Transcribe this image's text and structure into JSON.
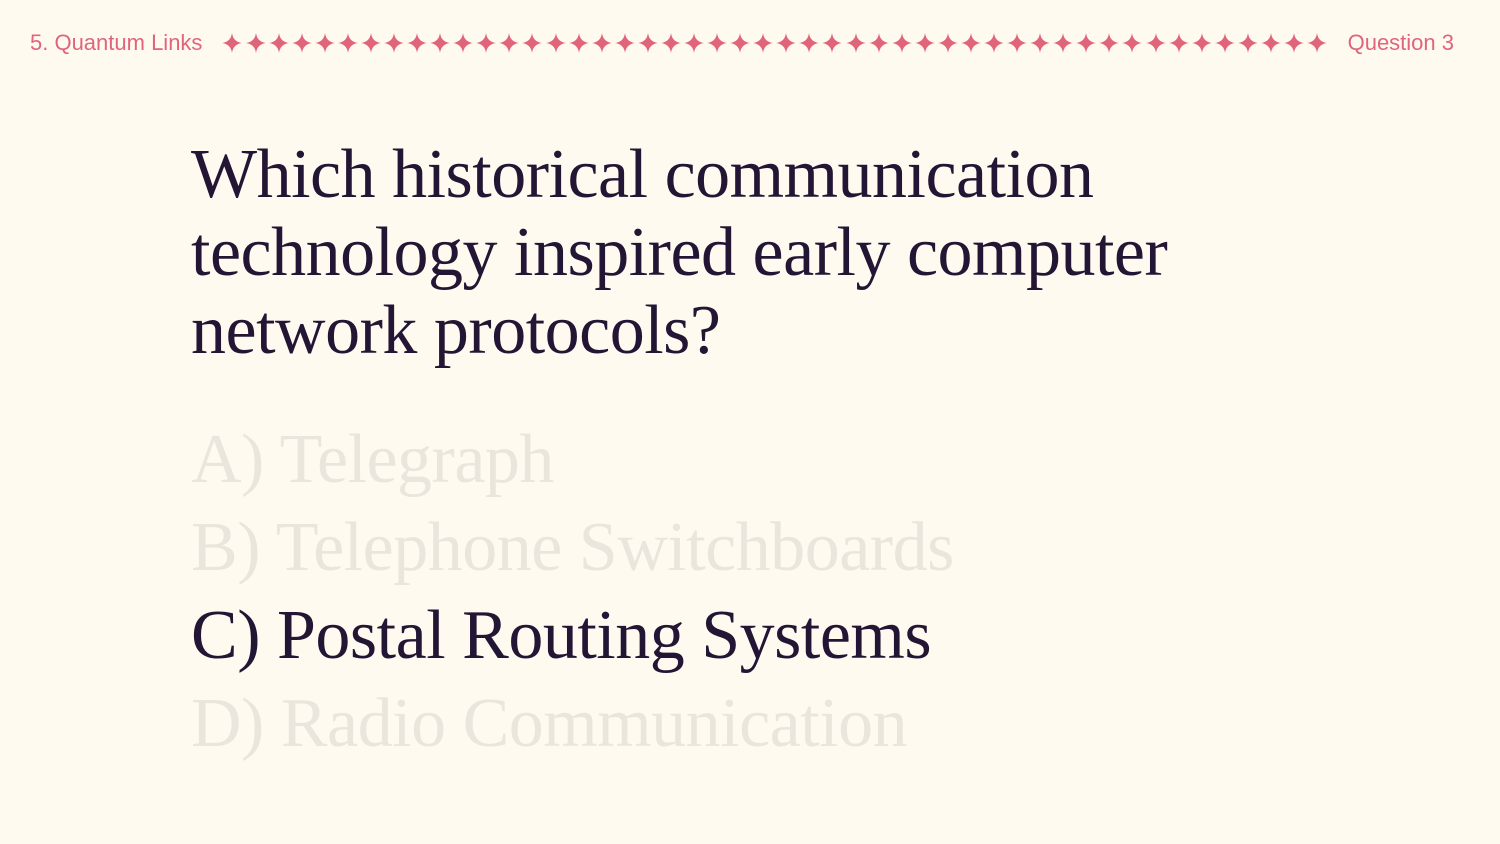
{
  "header": {
    "round_label": "5. Quantum Links",
    "question_label": "Question 3",
    "divider_icon": "sparkle-icon",
    "accent_color": "#e0657a"
  },
  "question": {
    "text": "Which historical communication technology inspired early computer network protocols?"
  },
  "answers": [
    {
      "label": "A) Telegraph",
      "selected": false
    },
    {
      "label": "B) Telephone Switchboards",
      "selected": false
    },
    {
      "label": "C) Postal Routing Systems",
      "selected": true
    },
    {
      "label": "D) Radio Communication",
      "selected": false
    }
  ],
  "colors": {
    "background": "#fffaf0",
    "text": "#231635",
    "faded_answer": "#ebe6dd"
  }
}
